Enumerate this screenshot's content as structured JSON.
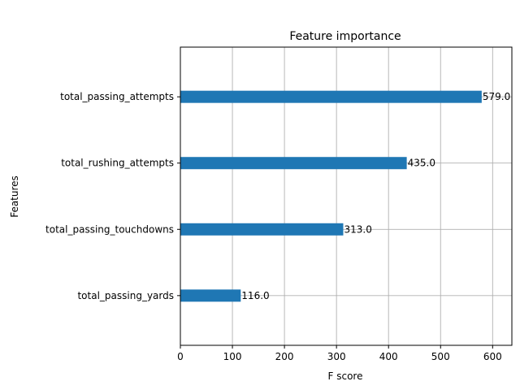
{
  "chart_data": {
    "type": "bar",
    "orientation": "horizontal",
    "title": "Feature importance",
    "xlabel": "F score",
    "ylabel": "Features",
    "categories": [
      "total_passing_yards",
      "total_passing_touchdowns",
      "total_rushing_attempts",
      "total_passing_attempts"
    ],
    "values": [
      116.0,
      313.0,
      435.0,
      579.0
    ],
    "data_labels": [
      "116.0",
      "313.0",
      "435.0",
      "579.0"
    ],
    "xlim": [
      0,
      637
    ],
    "xticks": [
      0,
      100,
      200,
      300,
      400,
      500,
      600
    ],
    "xtick_labels": [
      "0",
      "100",
      "200",
      "300",
      "400",
      "500",
      "600"
    ],
    "grid": true,
    "bar_color": "#1f77b4"
  }
}
